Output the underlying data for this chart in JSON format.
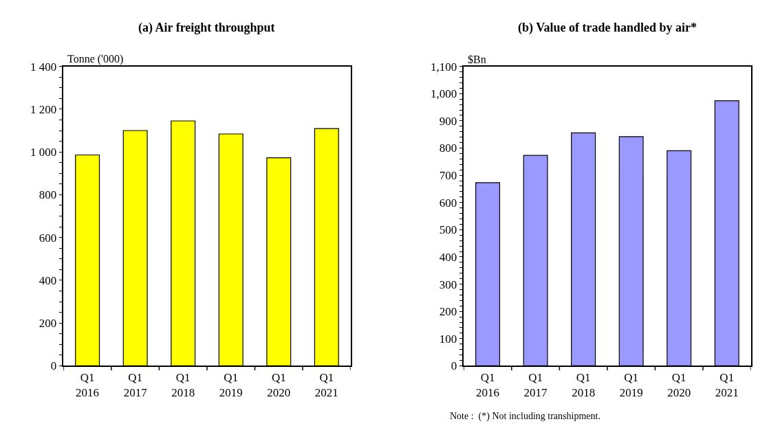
{
  "chart_data": [
    {
      "type": "bar",
      "title": "(a) Air freight throughput",
      "ylabel": "Tonne ('000)",
      "categories": [
        "Q1\n2016",
        "Q1\n2017",
        "Q1\n2018",
        "Q1\n2019",
        "Q1\n2020",
        "Q1\n2021"
      ],
      "values": [
        986,
        1100,
        1145,
        1084,
        973,
        1109
      ],
      "color": "#ffff00",
      "ylim": [
        0,
        1400
      ],
      "yticks": [
        {
          "value": 0,
          "label": "0"
        },
        {
          "value": 50,
          "label": null
        },
        {
          "value": 100,
          "label": null
        },
        {
          "value": 150,
          "label": null
        },
        {
          "value": 200,
          "label": "200"
        },
        {
          "value": 250,
          "label": null
        },
        {
          "value": 300,
          "label": null
        },
        {
          "value": 350,
          "label": null
        },
        {
          "value": 400,
          "label": "400"
        },
        {
          "value": 450,
          "label": null
        },
        {
          "value": 500,
          "label": null
        },
        {
          "value": 550,
          "label": null
        },
        {
          "value": 600,
          "label": "600"
        },
        {
          "value": 650,
          "label": null
        },
        {
          "value": 700,
          "label": null
        },
        {
          "value": 750,
          "label": null
        },
        {
          "value": 800,
          "label": "800"
        },
        {
          "value": 850,
          "label": null
        },
        {
          "value": 900,
          "label": null
        },
        {
          "value": 950,
          "label": null
        },
        {
          "value": 1000,
          "label": "1 000"
        },
        {
          "value": 1050,
          "label": null
        },
        {
          "value": 1100,
          "label": null
        },
        {
          "value": 1150,
          "label": null
        },
        {
          "value": 1200,
          "label": "1 200"
        },
        {
          "value": 1250,
          "label": null
        },
        {
          "value": 1300,
          "label": null
        },
        {
          "value": 1350,
          "label": null
        },
        {
          "value": 1400,
          "label": "1 400"
        }
      ]
    },
    {
      "type": "bar",
      "title": "(b) Value of trade handled by air*",
      "ylabel": "$Bn",
      "categories": [
        "Q1\n2016",
        "Q1\n2017",
        "Q1\n2018",
        "Q1\n2019",
        "Q1\n2020",
        "Q1\n2021"
      ],
      "values": [
        673,
        773,
        856,
        842,
        790,
        974
      ],
      "color": "#9999ff",
      "ylim": [
        0,
        1100
      ],
      "yticks": [
        {
          "value": 0,
          "label": "0"
        },
        {
          "value": 20,
          "label": null
        },
        {
          "value": 40,
          "label": null
        },
        {
          "value": 60,
          "label": null
        },
        {
          "value": 80,
          "label": null
        },
        {
          "value": 100,
          "label": "100"
        },
        {
          "value": 120,
          "label": null
        },
        {
          "value": 140,
          "label": null
        },
        {
          "value": 160,
          "label": null
        },
        {
          "value": 180,
          "label": null
        },
        {
          "value": 200,
          "label": "200"
        },
        {
          "value": 220,
          "label": null
        },
        {
          "value": 240,
          "label": null
        },
        {
          "value": 260,
          "label": null
        },
        {
          "value": 280,
          "label": null
        },
        {
          "value": 300,
          "label": "300"
        },
        {
          "value": 320,
          "label": null
        },
        {
          "value": 340,
          "label": null
        },
        {
          "value": 360,
          "label": null
        },
        {
          "value": 380,
          "label": null
        },
        {
          "value": 400,
          "label": "400"
        },
        {
          "value": 420,
          "label": null
        },
        {
          "value": 440,
          "label": null
        },
        {
          "value": 460,
          "label": null
        },
        {
          "value": 480,
          "label": null
        },
        {
          "value": 500,
          "label": "500"
        },
        {
          "value": 520,
          "label": null
        },
        {
          "value": 540,
          "label": null
        },
        {
          "value": 560,
          "label": null
        },
        {
          "value": 580,
          "label": null
        },
        {
          "value": 600,
          "label": "600"
        },
        {
          "value": 620,
          "label": null
        },
        {
          "value": 640,
          "label": null
        },
        {
          "value": 660,
          "label": null
        },
        {
          "value": 680,
          "label": null
        },
        {
          "value": 700,
          "label": "700"
        },
        {
          "value": 720,
          "label": null
        },
        {
          "value": 740,
          "label": null
        },
        {
          "value": 760,
          "label": null
        },
        {
          "value": 780,
          "label": null
        },
        {
          "value": 800,
          "label": "800"
        },
        {
          "value": 820,
          "label": null
        },
        {
          "value": 840,
          "label": null
        },
        {
          "value": 860,
          "label": null
        },
        {
          "value": 880,
          "label": null
        },
        {
          "value": 900,
          "label": "900"
        },
        {
          "value": 920,
          "label": null
        },
        {
          "value": 940,
          "label": null
        },
        {
          "value": 960,
          "label": null
        },
        {
          "value": 980,
          "label": null
        },
        {
          "value": 1000,
          "label": "1,000"
        },
        {
          "value": 1020,
          "label": null
        },
        {
          "value": 1040,
          "label": null
        },
        {
          "value": 1060,
          "label": null
        },
        {
          "value": 1080,
          "label": null
        },
        {
          "value": 1100,
          "label": "1,100"
        }
      ],
      "annotations": [
        "Note :  (*) Not including transhipment."
      ]
    }
  ]
}
